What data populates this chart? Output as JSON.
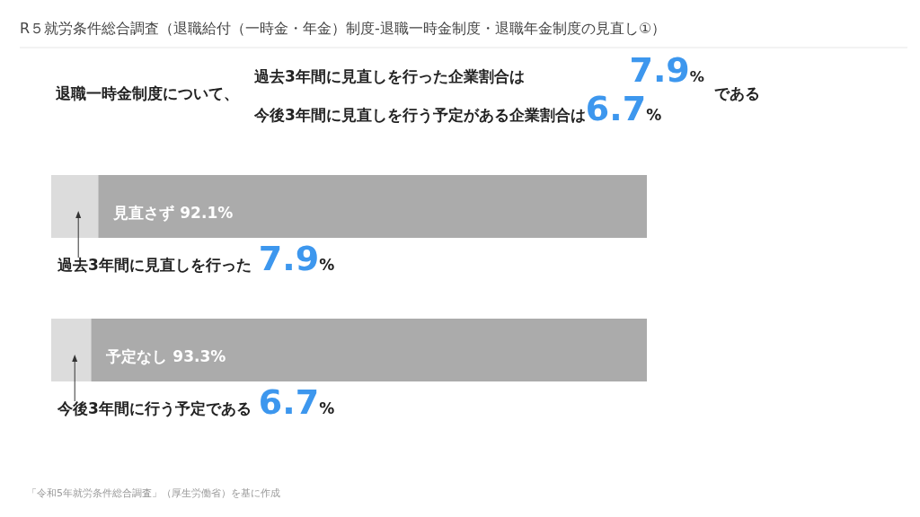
{
  "chart_data": {
    "type": "bar",
    "orientation": "horizontal",
    "stacked": true,
    "title": "R５就労条件総合調査（退職給付（一時金・年金）制度-退職一時金制度・退職年金制度の見直し①）",
    "categories": [
      null,
      null
    ],
    "series": [
      {
        "color": "#dcdcdc",
        "values": [
          7.9,
          6.7
        ],
        "value_labels": [
          "過去3年間に見直しを行った 7.9%",
          "今後3年間に行う予定である 6.7%"
        ]
      },
      {
        "color": "#ababab",
        "values": [
          92.1,
          93.3
        ],
        "value_labels": [
          "見直さず  92.1%",
          "予定なし  93.3%"
        ]
      }
    ],
    "annotations": [
      "退職一時金制度について、",
      "過去3年間に見直しを行った企業割合は 7.9%",
      "今後3年間に見直しを行う予定がある企業割合は6.7%",
      "である",
      "「令和5年就労条件総合調査」（厚生労働省）を基に作成"
    ]
  }
}
